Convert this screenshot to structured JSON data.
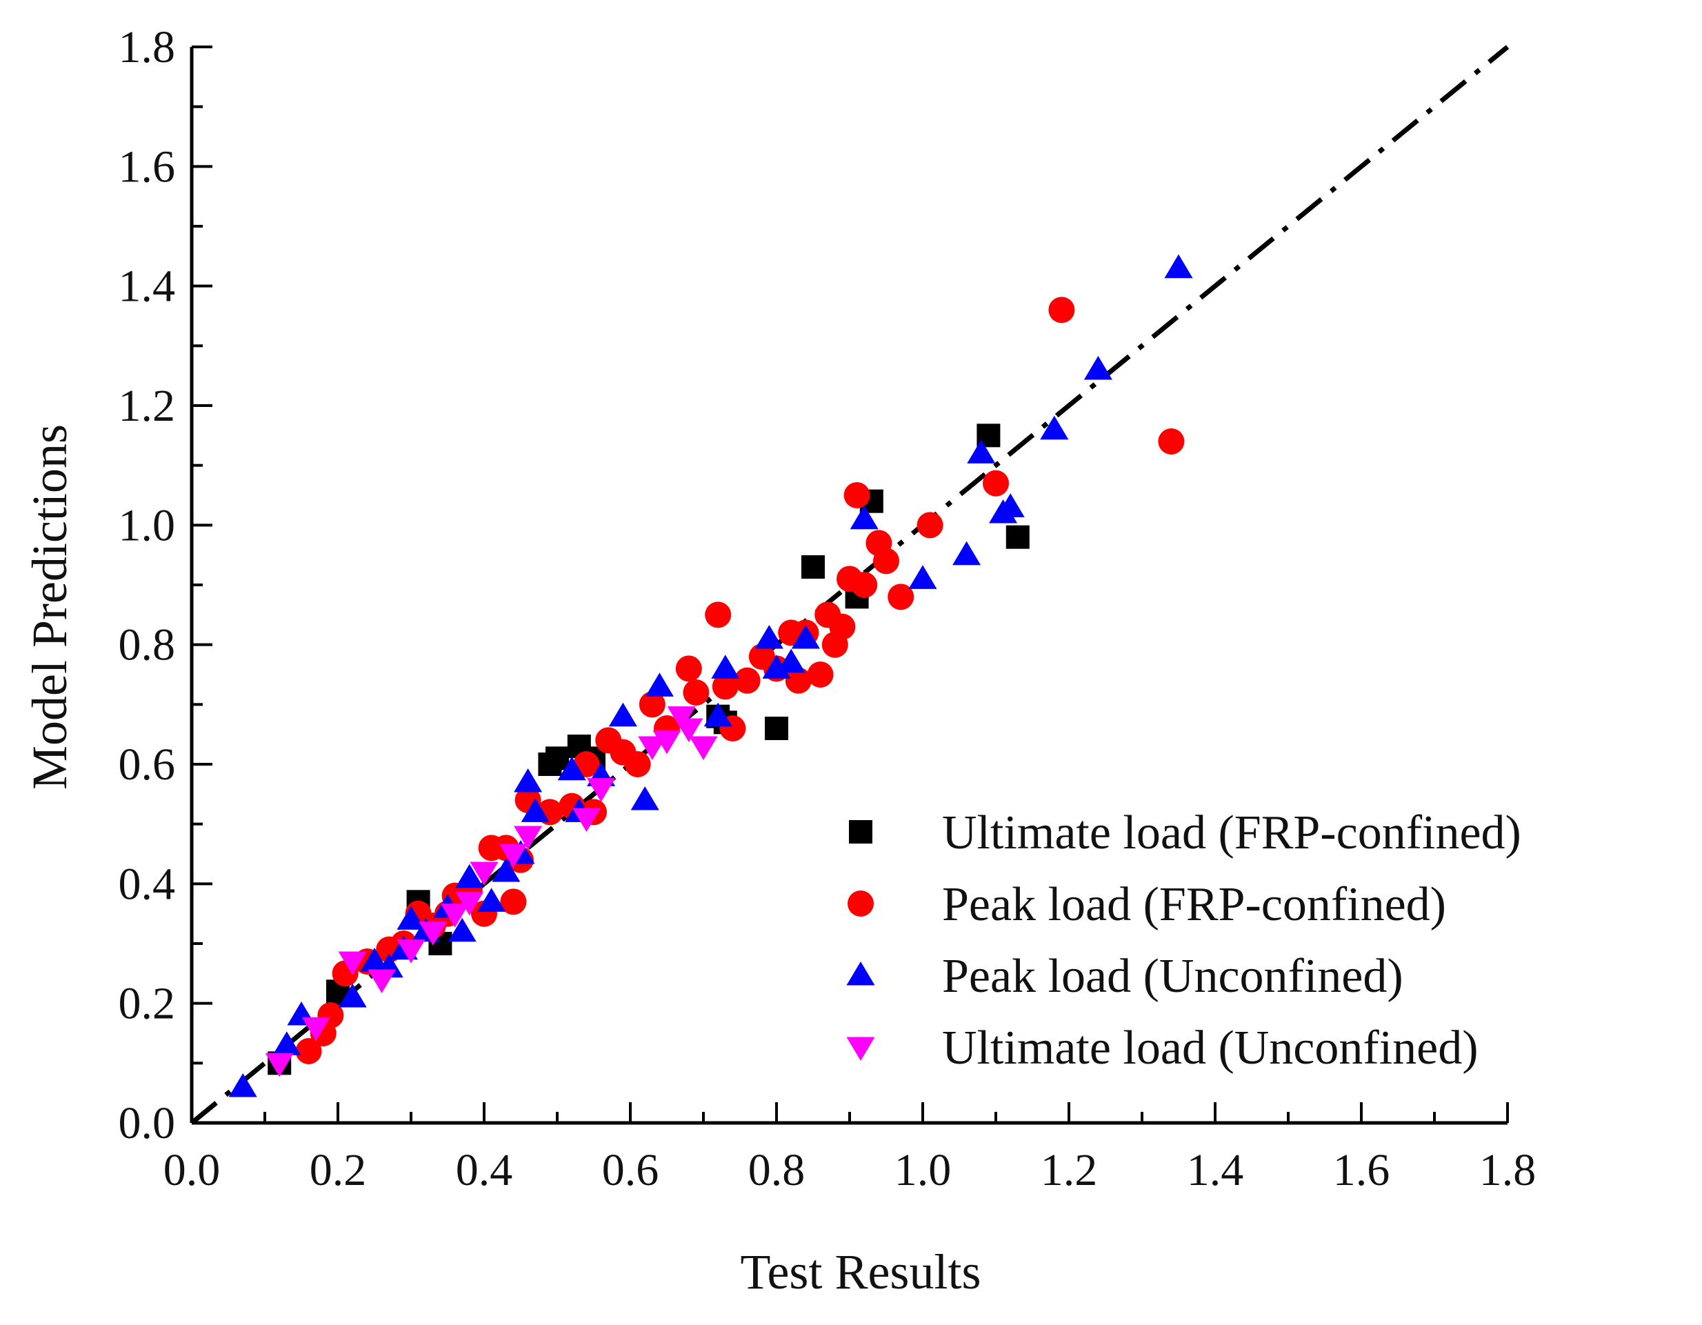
{
  "chart_data": {
    "type": "scatter",
    "title": "",
    "xlabel": "Test Results",
    "ylabel": "Model Predictions",
    "xlim": [
      0.0,
      1.8
    ],
    "ylim": [
      0.0,
      1.8
    ],
    "xticks": [
      "0.0",
      "0.2",
      "0.4",
      "0.6",
      "0.8",
      "1.0",
      "1.2",
      "1.4",
      "1.6",
      "1.8"
    ],
    "yticks": [
      "0.0",
      "0.2",
      "0.4",
      "0.6",
      "0.8",
      "1.0",
      "1.2",
      "1.4",
      "1.6",
      "1.8"
    ],
    "reference_line": {
      "style": "dash-dot",
      "from": [
        0,
        0
      ],
      "to": [
        1.8,
        1.8
      ],
      "color": "#000000"
    },
    "legend_position": "lower-right",
    "series": [
      {
        "name": "Ultimate load (FRP-confined)",
        "marker": "square",
        "color": "#000000",
        "points": [
          [
            0.12,
            0.1
          ],
          [
            0.2,
            0.22
          ],
          [
            0.31,
            0.37
          ],
          [
            0.34,
            0.3
          ],
          [
            0.49,
            0.6
          ],
          [
            0.5,
            0.61
          ],
          [
            0.53,
            0.63
          ],
          [
            0.55,
            0.61
          ],
          [
            0.72,
            0.68
          ],
          [
            0.73,
            0.67
          ],
          [
            0.8,
            0.66
          ],
          [
            0.85,
            0.93
          ],
          [
            0.91,
            0.88
          ],
          [
            0.93,
            1.04
          ],
          [
            1.09,
            1.15
          ],
          [
            1.13,
            0.98
          ]
        ]
      },
      {
        "name": "Peak load (FRP-confined)",
        "marker": "circle",
        "color": "#ff0000",
        "points": [
          [
            0.16,
            0.12
          ],
          [
            0.18,
            0.15
          ],
          [
            0.19,
            0.18
          ],
          [
            0.21,
            0.25
          ],
          [
            0.24,
            0.27
          ],
          [
            0.27,
            0.29
          ],
          [
            0.29,
            0.3
          ],
          [
            0.31,
            0.35
          ],
          [
            0.33,
            0.33
          ],
          [
            0.35,
            0.35
          ],
          [
            0.36,
            0.38
          ],
          [
            0.38,
            0.39
          ],
          [
            0.4,
            0.35
          ],
          [
            0.41,
            0.46
          ],
          [
            0.43,
            0.46
          ],
          [
            0.44,
            0.37
          ],
          [
            0.45,
            0.44
          ],
          [
            0.46,
            0.54
          ],
          [
            0.49,
            0.52
          ],
          [
            0.52,
            0.53
          ],
          [
            0.54,
            0.6
          ],
          [
            0.55,
            0.52
          ],
          [
            0.57,
            0.64
          ],
          [
            0.59,
            0.62
          ],
          [
            0.61,
            0.6
          ],
          [
            0.63,
            0.7
          ],
          [
            0.65,
            0.66
          ],
          [
            0.68,
            0.76
          ],
          [
            0.69,
            0.72
          ],
          [
            0.72,
            0.85
          ],
          [
            0.73,
            0.73
          ],
          [
            0.74,
            0.66
          ],
          [
            0.76,
            0.74
          ],
          [
            0.78,
            0.78
          ],
          [
            0.8,
            0.76
          ],
          [
            0.82,
            0.82
          ],
          [
            0.83,
            0.74
          ],
          [
            0.84,
            0.82
          ],
          [
            0.86,
            0.75
          ],
          [
            0.87,
            0.85
          ],
          [
            0.88,
            0.8
          ],
          [
            0.89,
            0.83
          ],
          [
            0.9,
            0.91
          ],
          [
            0.91,
            1.05
          ],
          [
            0.92,
            0.9
          ],
          [
            0.94,
            0.97
          ],
          [
            0.95,
            0.94
          ],
          [
            0.97,
            0.88
          ],
          [
            1.01,
            1.0
          ],
          [
            1.1,
            1.07
          ],
          [
            1.19,
            1.36
          ],
          [
            1.34,
            1.14
          ]
        ]
      },
      {
        "name": "Peak load (Unconfined)",
        "marker": "triangle-up",
        "color": "#0000ff",
        "points": [
          [
            0.07,
            0.06
          ],
          [
            0.13,
            0.13
          ],
          [
            0.15,
            0.18
          ],
          [
            0.22,
            0.21
          ],
          [
            0.25,
            0.27
          ],
          [
            0.27,
            0.26
          ],
          [
            0.29,
            0.29
          ],
          [
            0.3,
            0.34
          ],
          [
            0.32,
            0.32
          ],
          [
            0.35,
            0.36
          ],
          [
            0.37,
            0.32
          ],
          [
            0.38,
            0.41
          ],
          [
            0.41,
            0.37
          ],
          [
            0.43,
            0.42
          ],
          [
            0.45,
            0.45
          ],
          [
            0.46,
            0.57
          ],
          [
            0.47,
            0.52
          ],
          [
            0.52,
            0.59
          ],
          [
            0.53,
            0.52
          ],
          [
            0.56,
            0.58
          ],
          [
            0.59,
            0.68
          ],
          [
            0.62,
            0.54
          ],
          [
            0.64,
            0.73
          ],
          [
            0.72,
            0.68
          ],
          [
            0.73,
            0.76
          ],
          [
            0.79,
            0.81
          ],
          [
            0.8,
            0.76
          ],
          [
            0.82,
            0.77
          ],
          [
            0.84,
            0.81
          ],
          [
            0.92,
            1.01
          ],
          [
            1.0,
            0.91
          ],
          [
            1.06,
            0.95
          ],
          [
            1.08,
            1.12
          ],
          [
            1.11,
            1.02
          ],
          [
            1.12,
            1.03
          ],
          [
            1.18,
            1.16
          ],
          [
            1.24,
            1.26
          ],
          [
            1.35,
            1.43
          ]
        ]
      },
      {
        "name": "Ultimate load (Unconfined)",
        "marker": "triangle-down",
        "color": "#ff00ff",
        "points": [
          [
            0.12,
            0.1
          ],
          [
            0.17,
            0.16
          ],
          [
            0.22,
            0.27
          ],
          [
            0.26,
            0.24
          ],
          [
            0.3,
            0.29
          ],
          [
            0.33,
            0.32
          ],
          [
            0.36,
            0.35
          ],
          [
            0.38,
            0.37
          ],
          [
            0.4,
            0.42
          ],
          [
            0.44,
            0.45
          ],
          [
            0.46,
            0.48
          ],
          [
            0.54,
            0.51
          ],
          [
            0.56,
            0.56
          ],
          [
            0.63,
            0.63
          ],
          [
            0.65,
            0.64
          ],
          [
            0.67,
            0.68
          ],
          [
            0.68,
            0.66
          ],
          [
            0.7,
            0.63
          ]
        ]
      }
    ]
  }
}
